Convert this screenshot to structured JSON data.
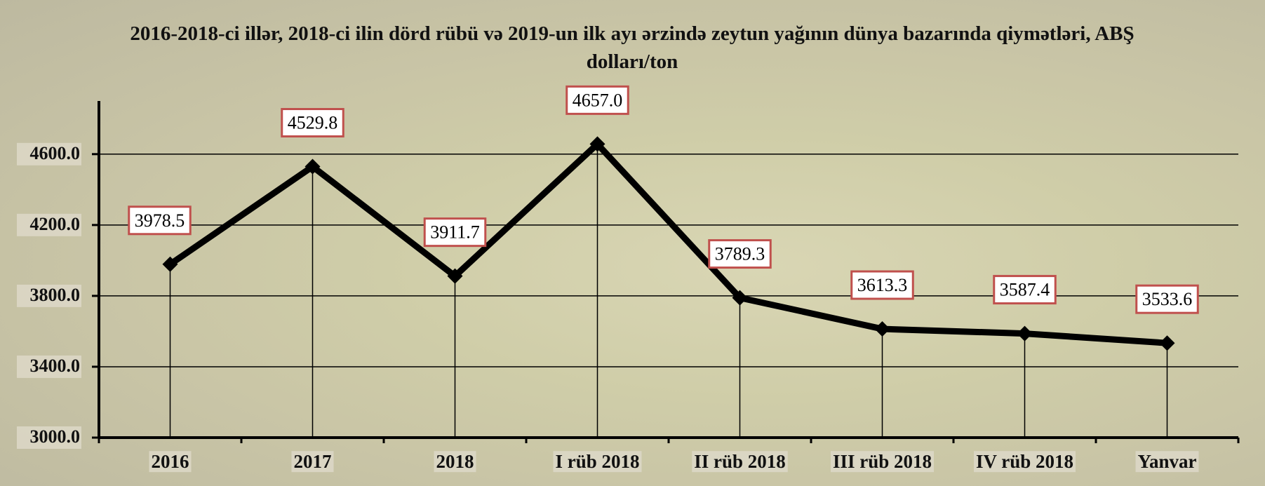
{
  "chart_data": {
    "type": "line",
    "title": "2016-2018-ci illər, 2018-ci ilin dörd rübü və 2019-un ilk ayı ərzində zeytun yağının dünya bazarında qiymətləri, ABŞ dolları/ton",
    "categories": [
      "2016",
      "2017",
      "2018",
      "I rüb 2018",
      "II rüb 2018",
      "III rüb 2018",
      "IV rüb 2018",
      "Yanvar"
    ],
    "values": [
      3978.5,
      4529.8,
      3911.7,
      4657.0,
      3789.3,
      3613.3,
      3587.4,
      3533.6
    ],
    "value_labels": [
      "3978.5",
      "4529.8",
      "3911.7",
      "4657.0",
      "3789.3",
      "3613.3",
      "3587.4",
      "3533.6"
    ],
    "color": "#000000",
    "ylim": [
      3000,
      4900
    ],
    "yticks": [
      {
        "value": 3000,
        "label": "3000.0"
      },
      {
        "value": 3400,
        "label": "3400.0"
      },
      {
        "value": 3800,
        "label": "3800.0"
      },
      {
        "value": 4200,
        "label": "4200.0"
      },
      {
        "value": 4600,
        "label": "4600.0"
      }
    ],
    "grid": true
  }
}
